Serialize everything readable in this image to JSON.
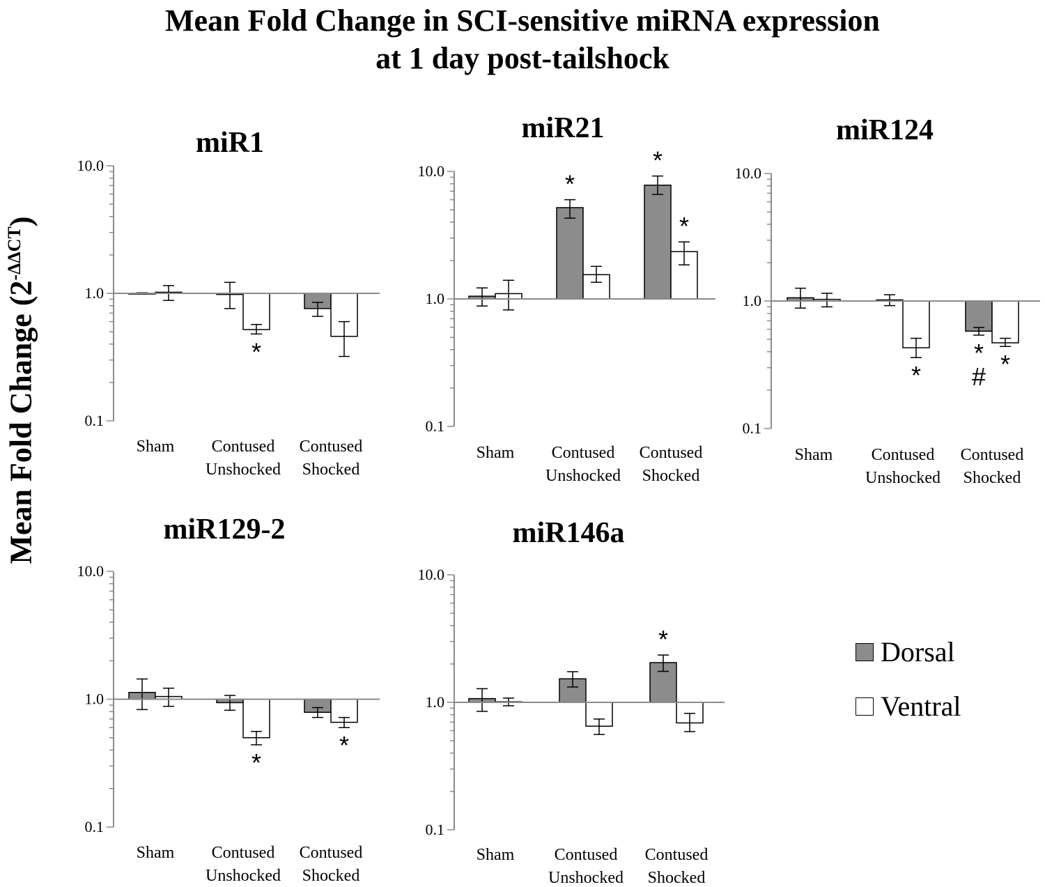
{
  "title_line1": "Mean Fold Change in SCI-sensitive miRNA expression",
  "title_line2": "at 1 day post-tailshock",
  "y_axis_label": "Mean Fold Change (2",
  "y_axis_label_sup": "-ΔΔCT",
  "legend": {
    "dorsal": "Dorsal",
    "ventral": "Ventral"
  },
  "colors": {
    "dorsal": "#8c8c8c",
    "ventral": "#ffffff",
    "axis": "#8a8a8a"
  },
  "chart_data": [
    {
      "type": "bar",
      "title": "miR1",
      "scale": "log10",
      "ylim": [
        0.1,
        10.0
      ],
      "yticks": [
        "10.0",
        "1.0",
        "0.1"
      ],
      "categories": [
        "Sham",
        "Contused\nUnshocked",
        "Contused\nShocked"
      ],
      "series": [
        {
          "name": "Dorsal",
          "values": [
            1.0,
            0.98,
            0.76
          ],
          "err_low": [
            0.99,
            0.76,
            0.66
          ],
          "err_high": [
            1.01,
            1.22,
            0.85
          ]
        },
        {
          "name": "Ventral",
          "values": [
            1.02,
            0.52,
            0.46
          ],
          "err_low": [
            0.88,
            0.48,
            0.32
          ],
          "err_high": [
            1.15,
            0.57,
            0.6
          ]
        }
      ],
      "annotations": [
        {
          "series": 1,
          "category": 1,
          "text": "*",
          "position": "below"
        }
      ]
    },
    {
      "type": "bar",
      "title": "miR21",
      "scale": "log10",
      "ylim": [
        0.1,
        10.0
      ],
      "yticks": [
        "10.0",
        "1.0",
        "0.1"
      ],
      "categories": [
        "Sham",
        "Contused\nUnshocked",
        "Contused\nShocked"
      ],
      "series": [
        {
          "name": "Dorsal",
          "values": [
            1.05,
            5.2,
            7.8
          ],
          "err_low": [
            0.88,
            4.3,
            6.6
          ],
          "err_high": [
            1.22,
            6.0,
            9.2
          ]
        },
        {
          "name": "Ventral",
          "values": [
            1.1,
            1.55,
            2.35
          ],
          "err_low": [
            0.82,
            1.35,
            1.85
          ],
          "err_high": [
            1.4,
            1.8,
            2.8
          ]
        }
      ],
      "annotations": [
        {
          "series": 0,
          "category": 1,
          "text": "*",
          "position": "above"
        },
        {
          "series": 0,
          "category": 2,
          "text": "*",
          "position": "above"
        },
        {
          "series": 1,
          "category": 2,
          "text": "*",
          "position": "above"
        }
      ]
    },
    {
      "type": "bar",
      "title": "miR124",
      "scale": "log10",
      "ylim": [
        0.1,
        10.0
      ],
      "yticks": [
        "10.0",
        "1.0",
        "0.1"
      ],
      "categories": [
        "Sham",
        "Contused\nUnshocked",
        "Contused\nShocked"
      ],
      "series": [
        {
          "name": "Dorsal",
          "values": [
            1.06,
            1.02,
            0.58
          ],
          "err_low": [
            0.88,
            0.92,
            0.54
          ],
          "err_high": [
            1.26,
            1.12,
            0.62
          ]
        },
        {
          "name": "Ventral",
          "values": [
            1.03,
            0.43,
            0.47
          ],
          "err_low": [
            0.9,
            0.36,
            0.44
          ],
          "err_high": [
            1.15,
            0.51,
            0.51
          ]
        }
      ],
      "annotations": [
        {
          "series": 1,
          "category": 1,
          "text": "*",
          "position": "below"
        },
        {
          "series": 0,
          "category": 2,
          "text": "*",
          "position": "below"
        },
        {
          "series": 0,
          "category": 2,
          "text": "#",
          "position": "below2"
        },
        {
          "series": 1,
          "category": 2,
          "text": "*",
          "position": "below"
        }
      ]
    },
    {
      "type": "bar",
      "title": "miR129-2",
      "scale": "log10",
      "ylim": [
        0.1,
        10.0
      ],
      "yticks": [
        "10.0",
        "1.0",
        "0.1"
      ],
      "categories": [
        "Sham",
        "Contused\nUnshocked",
        "Contused\nShocked"
      ],
      "series": [
        {
          "name": "Dorsal",
          "values": [
            1.13,
            0.94,
            0.79
          ],
          "err_low": [
            0.83,
            0.82,
            0.72
          ],
          "err_high": [
            1.44,
            1.07,
            0.86
          ]
        },
        {
          "name": "Ventral",
          "values": [
            1.05,
            0.5,
            0.66
          ],
          "err_low": [
            0.88,
            0.44,
            0.6
          ],
          "err_high": [
            1.22,
            0.56,
            0.72
          ]
        }
      ],
      "annotations": [
        {
          "series": 1,
          "category": 1,
          "text": "*",
          "position": "below"
        },
        {
          "series": 1,
          "category": 2,
          "text": "*",
          "position": "below"
        }
      ]
    },
    {
      "type": "bar",
      "title": "miR146a",
      "scale": "log10",
      "ylim": [
        0.1,
        10.0
      ],
      "yticks": [
        "10.0",
        "1.0",
        "0.1"
      ],
      "categories": [
        "Sham",
        "Contused\nUnshocked",
        "Contused\nShocked"
      ],
      "series": [
        {
          "name": "Dorsal",
          "values": [
            1.07,
            1.53,
            2.05
          ],
          "err_low": [
            0.85,
            1.32,
            1.75
          ],
          "err_high": [
            1.28,
            1.74,
            2.35
          ]
        },
        {
          "name": "Ventral",
          "values": [
            1.01,
            0.65,
            0.69
          ],
          "err_low": [
            0.94,
            0.56,
            0.59
          ],
          "err_high": [
            1.08,
            0.74,
            0.82
          ]
        }
      ],
      "annotations": [
        {
          "series": 0,
          "category": 2,
          "text": "*",
          "position": "above"
        }
      ]
    }
  ]
}
